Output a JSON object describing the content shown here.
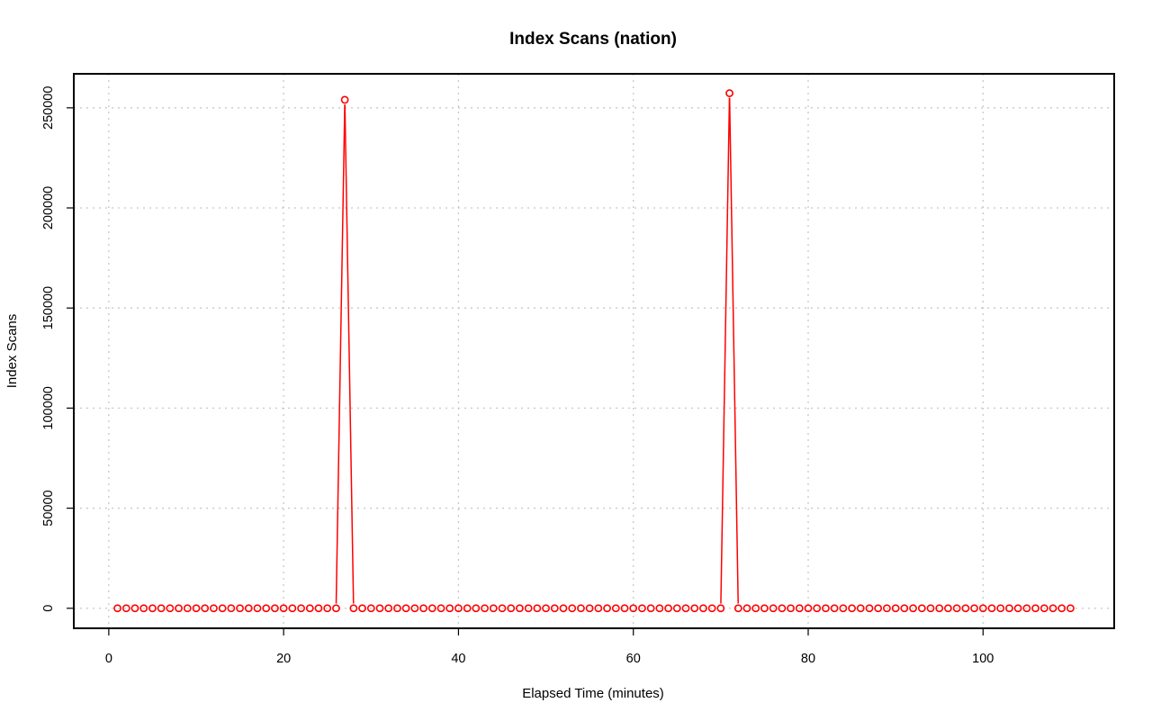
{
  "chart_data": {
    "type": "line",
    "title": "Index Scans (nation)",
    "xlabel": "Elapsed Time (minutes)",
    "ylabel": "Index Scans",
    "xlim": [
      -4,
      115
    ],
    "ylim": [
      -10000,
      267000
    ],
    "x_ticks": [
      0,
      20,
      40,
      60,
      80,
      100
    ],
    "y_ticks": [
      0,
      50000,
      100000,
      150000,
      200000,
      250000
    ],
    "grid": true,
    "legend": "none",
    "series_color": "#ff0000",
    "x_start": 1,
    "x_end": 110,
    "baseline_value": 0,
    "peaks": [
      {
        "x": 27,
        "y": 254000
      },
      {
        "x": 71,
        "y": 257300
      }
    ]
  }
}
